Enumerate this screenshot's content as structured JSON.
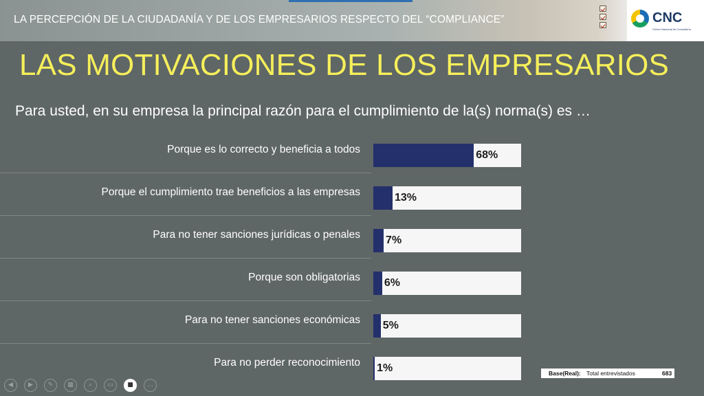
{
  "header": {
    "title": "LA PERCEPCIÓN DE LA CIUDADANÍA Y DE LOS EMPRESARIOS RESPECTO DEL “COMPLIANCE”",
    "logo_text": "CNC",
    "logo_subtitle": "Centro Nacional de Consultoría",
    "decor_icon": "checklist-icon"
  },
  "slide": {
    "heading": "LAS MOTIVACIONES DE LOS EMPRESARIOS",
    "question": "Para usted, en su empresa la principal razón para  el cumplimiento de la(s) norma(s) es …"
  },
  "colors": {
    "background": "#5f6666",
    "heading": "#f5ef5a",
    "bar_fill": "#24306b",
    "bar_track": "#f6f6f7"
  },
  "chart_data": {
    "type": "bar",
    "orientation": "horizontal",
    "categories": [
      "Porque es lo correcto y beneficia a todos",
      "Porque el cumplimiento trae beneficios a las empresas",
      "Para no tener sanciones jurídicas o penales",
      "Porque son obligatorias",
      "Para no tener sanciones económicas",
      "Para no perder reconocimiento"
    ],
    "values": [
      68,
      13,
      7,
      6,
      5,
      1
    ],
    "value_labels": [
      "68%",
      "13%",
      "7%",
      "6%",
      "5%",
      "1%"
    ],
    "xlim": [
      0,
      100
    ],
    "title": "",
    "xlabel": "",
    "ylabel": "",
    "grid": false
  },
  "base": {
    "label": "Base(Real):",
    "description": "Total entrevistados",
    "count": "683"
  },
  "controls": [
    {
      "icon": "previous-icon",
      "glyph": "◀"
    },
    {
      "icon": "next-icon",
      "glyph": "▶"
    },
    {
      "icon": "pen-icon",
      "glyph": "✎"
    },
    {
      "icon": "slides-icon",
      "glyph": "▦"
    },
    {
      "icon": "zoom-icon",
      "glyph": "⌕"
    },
    {
      "icon": "subtitles-icon",
      "glyph": "▭"
    },
    {
      "icon": "camera-icon",
      "glyph": "■"
    },
    {
      "icon": "more-options-icon",
      "glyph": "…"
    }
  ]
}
